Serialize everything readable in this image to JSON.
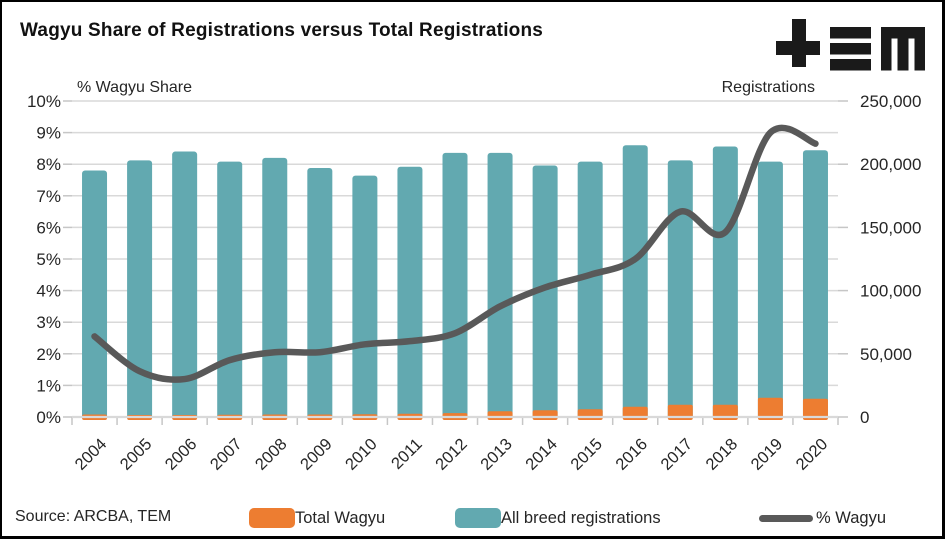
{
  "header": {
    "title": "Wagyu Share of Registrations versus Total Registrations",
    "logo": "TEM"
  },
  "axes": {
    "left_title": "% Wagyu Share",
    "right_title": "Registrations"
  },
  "footer": {
    "source": "Source: ARCBA, TEM"
  },
  "legend": {
    "items": [
      {
        "label": "Total Wagyu",
        "swatch": "bar",
        "color": "#ED7D31"
      },
      {
        "label": "All breed registrations",
        "swatch": "bar",
        "color": "#62A9B0"
      },
      {
        "label": "% Wagyu",
        "swatch": "line",
        "color": "#595959"
      }
    ]
  },
  "colors": {
    "wagyu_bar": "#ED7D31",
    "all_breed_bar": "#62A9B0",
    "share_line": "#595959",
    "grid": "#D9D9D9",
    "axis": "#C6C6C6",
    "text": "#262626",
    "logo": "#1A1A1A",
    "border": "#000000"
  },
  "chart_data": {
    "type": "combo",
    "title": "Wagyu Share of Registrations versus Total Registrations",
    "categories": [
      "2004",
      "2005",
      "2006",
      "2007",
      "2008",
      "2009",
      "2010",
      "2011",
      "2012",
      "2013",
      "2014",
      "2015",
      "2016",
      "2017",
      "2018",
      "2019",
      "2020"
    ],
    "series": [
      {
        "name": "Total Wagyu",
        "type": "bar",
        "axis": "right",
        "color": "#ED7D31",
        "values": [
          2000,
          1600,
          1600,
          1800,
          2000,
          2000,
          2200,
          2600,
          3100,
          4500,
          5300,
          6100,
          8100,
          9700,
          9700,
          15200,
          14400
        ]
      },
      {
        "name": "All breed registrations",
        "type": "bar",
        "axis": "right",
        "color": "#62A9B0",
        "values": [
          195000,
          203000,
          210000,
          202000,
          205000,
          197000,
          191000,
          198000,
          209000,
          209000,
          199000,
          202000,
          215000,
          203000,
          214000,
          202000,
          211000
        ]
      },
      {
        "name": "% Wagyu",
        "type": "line",
        "axis": "left",
        "color": "#595959",
        "values": [
          2.55,
          1.45,
          1.2,
          1.8,
          2.05,
          2.05,
          2.3,
          2.4,
          2.65,
          3.5,
          4.1,
          4.5,
          5.0,
          6.5,
          5.85,
          9.0,
          8.65
        ]
      }
    ],
    "left_axis": {
      "title": "% Wagyu Share",
      "min": 0,
      "max": 10,
      "unit": "percent",
      "tick_labels_top_to_bottom": [
        "10%",
        "9%",
        "8%",
        "7%",
        "6%",
        "5%",
        "4%",
        "3%",
        "2%",
        "1%",
        "0%"
      ]
    },
    "right_axis": {
      "title": "Registrations",
      "min": 0,
      "max": 250000,
      "tick_labels_top_to_bottom": [
        "250,000",
        "200,000",
        "150,000",
        "100,000",
        "50,000",
        "0"
      ]
    },
    "grid": true,
    "legend_position": "bottom"
  }
}
